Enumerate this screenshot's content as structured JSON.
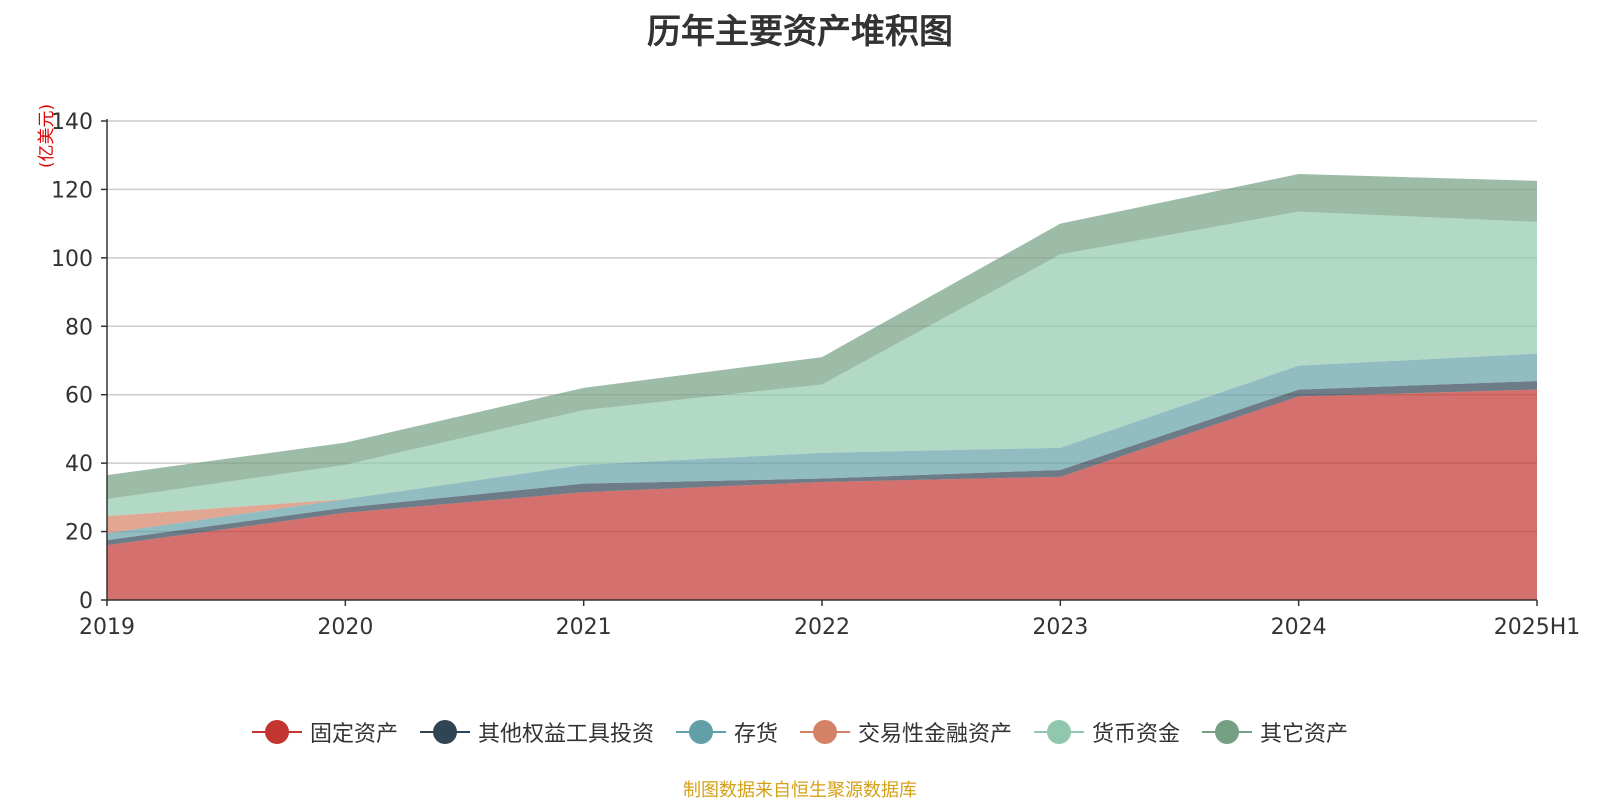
{
  "chart_data": {
    "type": "area",
    "stacked": true,
    "title": "历年主要资产堆积图",
    "unit": "(亿美元)",
    "categories": [
      "2019",
      "2020",
      "2021",
      "2022",
      "2023",
      "2024",
      "2025H1"
    ],
    "ylim": [
      0,
      140
    ],
    "yticks": [
      0,
      20,
      40,
      60,
      80,
      100,
      120,
      140
    ],
    "grid": true,
    "legend_position": "bottom",
    "series": [
      {
        "name": "固定资产",
        "color": "#c23531",
        "values": [
          16,
          25.5,
          31.5,
          34.5,
          36,
          59.5,
          61.5
        ]
      },
      {
        "name": "其他权益工具投资",
        "color": "#2f4554",
        "values": [
          1.5,
          1.5,
          2.5,
          1,
          2,
          2,
          2.5
        ]
      },
      {
        "name": "存货",
        "color": "#61a0a8",
        "values": [
          2,
          2.5,
          5.5,
          7.5,
          6.5,
          7,
          8
        ]
      },
      {
        "name": "交易性金融资产",
        "color": "#d48265",
        "values": [
          5,
          0,
          0,
          0,
          0,
          0,
          0
        ]
      },
      {
        "name": "货币资金",
        "color": "#91c7ae",
        "values": [
          5,
          10,
          16,
          20,
          56.5,
          45,
          38.5
        ]
      },
      {
        "name": "其它资产",
        "color": "#749f83",
        "values": [
          7,
          6.5,
          6.5,
          8,
          9,
          11,
          12
        ]
      }
    ]
  },
  "source_note": "制图数据来自恒生聚源数据库"
}
